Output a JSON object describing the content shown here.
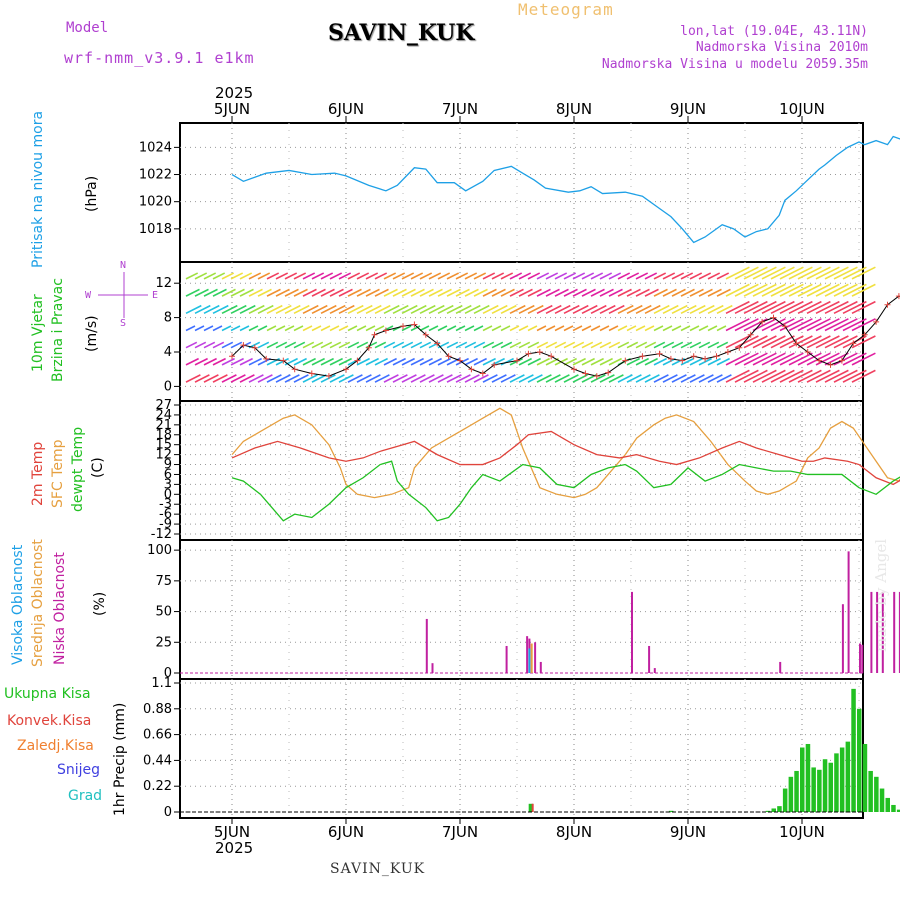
{
  "header": {
    "model_label": "Model",
    "model_name": "wrf-nmm_v3.9.1 e1km",
    "title": "Meteogram",
    "station": "SAVIN_KUK",
    "lonlat": "lon,lat (19.04E, 43.11N)",
    "elevation": "Nadmorska Visina 2010m",
    "model_elevation": "Nadmorska Visina u modelu 2059.35m"
  },
  "footer": {
    "station": "SAVIN_KUK"
  },
  "watermark": "made by Angel",
  "colors": {
    "pressure": "#1ea0e6",
    "t2m": "#e0443c",
    "sfc": "#e6a040",
    "dewpt": "#22c022",
    "high_cloud": "#1ea0e6",
    "mid_cloud": "#e6a040",
    "low_cloud": "#c020a0",
    "precip": "#22c022",
    "conv": "#e0443c",
    "frozen": "#f08030",
    "snow": "#4040e0",
    "hail": "#20c0c0"
  },
  "x_axis": {
    "top_year": "2025",
    "bottom_year": "2025",
    "days": [
      "5JUN",
      "6JUN",
      "7JUN",
      "8JUN",
      "9JUN",
      "10JUN"
    ]
  },
  "chart_data": [
    {
      "type": "line",
      "panel": "pressure",
      "ylabel_left": "Pritisak na nivou mora",
      "ylabel_unit": "(hPa)",
      "ylim": [
        1016,
        1025.5
      ],
      "yticks": [
        1018,
        1020,
        1022,
        1024
      ],
      "grid": true,
      "series": [
        {
          "x": [
            0,
            0.1,
            0.2,
            0.3,
            0.5,
            0.7,
            0.9,
            1.0,
            1.2,
            1.35,
            1.45,
            1.6,
            1.7,
            1.8,
            1.95,
            2.05,
            2.2,
            2.3,
            2.45,
            2.55,
            2.65,
            2.75,
            2.95,
            3.05,
            3.15,
            3.25,
            3.45,
            3.6,
            3.75,
            3.85,
            3.95,
            4.05,
            4.15,
            4.3,
            4.4,
            4.5,
            4.6,
            4.7,
            4.8,
            4.85,
            4.95,
            5.05,
            5.15,
            5.2,
            5.3,
            5.4,
            5.5,
            5.55,
            5.65,
            5.75,
            5.8,
            5.9,
            5.95,
            6.0,
            6.1
          ],
          "values": [
            1022.0,
            1021.5,
            1021.8,
            1022.1,
            1022.3,
            1022.0,
            1022.1,
            1021.9,
            1021.2,
            1020.8,
            1021.2,
            1022.5,
            1022.4,
            1021.4,
            1021.4,
            1020.8,
            1021.5,
            1022.3,
            1022.6,
            1022.1,
            1021.6,
            1021.0,
            1020.7,
            1020.8,
            1021.1,
            1020.6,
            1020.7,
            1020.4,
            1019.5,
            1018.9,
            1018.0,
            1017.0,
            1017.4,
            1018.3,
            1018.0,
            1017.4,
            1017.8,
            1018.0,
            1019.0,
            1020.1,
            1020.8,
            1021.6,
            1022.4,
            1022.7,
            1023.4,
            1024.0,
            1024.4,
            1024.2,
            1024.5,
            1024.2,
            1024.8,
            1024.5,
            1024.0,
            1022.6,
            1022.6
          ]
        }
      ]
    },
    {
      "type": "line",
      "panel": "wind",
      "ylabel_left": "10m Vjetar",
      "ylabel_left2": "Brzina i Pravac",
      "ylabel_unit": "(m/s)",
      "ylim": [
        -1,
        14
      ],
      "yticks": [
        0,
        4,
        8,
        12
      ],
      "compass": {
        "n": "N",
        "w": "W",
        "e": "E",
        "s": "S"
      },
      "series": [
        {
          "name": "speed",
          "x": [
            0,
            0.1,
            0.2,
            0.3,
            0.45,
            0.55,
            0.7,
            0.85,
            1.0,
            1.1,
            1.2,
            1.25,
            1.35,
            1.5,
            1.6,
            1.7,
            1.8,
            1.9,
            2.0,
            2.1,
            2.2,
            2.3,
            2.5,
            2.6,
            2.7,
            2.8,
            3.0,
            3.1,
            3.2,
            3.3,
            3.45,
            3.6,
            3.75,
            3.85,
            3.95,
            4.05,
            4.15,
            4.25,
            4.35,
            4.45,
            4.55,
            4.65,
            4.75,
            4.85,
            4.95,
            5.05,
            5.15,
            5.25,
            5.35,
            5.45,
            5.55,
            5.65,
            5.75,
            5.85,
            5.95,
            6.05
          ],
          "values": [
            3.5,
            4.8,
            4.5,
            3.2,
            3.0,
            2.0,
            1.5,
            1.2,
            2.0,
            3.0,
            4.5,
            6.0,
            6.5,
            7.0,
            7.2,
            6.0,
            5.0,
            3.5,
            3.0,
            2.0,
            1.5,
            2.5,
            3.0,
            3.8,
            4.0,
            3.5,
            2.0,
            1.5,
            1.2,
            1.6,
            3.0,
            3.5,
            3.8,
            3.2,
            3.0,
            3.5,
            3.2,
            3.5,
            4.0,
            4.5,
            6.0,
            7.5,
            8.0,
            7.0,
            5.0,
            4.0,
            3.0,
            2.5,
            3.0,
            5.0,
            6.0,
            7.5,
            9.5,
            10.5,
            10.0,
            7.5
          ]
        }
      ]
    },
    {
      "type": "line",
      "panel": "temperature",
      "ylabel_left": "2m Temp",
      "ylabel_left2": "SFC Temp",
      "ylabel_left3": "dewpt Temp",
      "ylabel_unit": "(C)",
      "ylim": [
        -12,
        27
      ],
      "yticks": [
        -12,
        -9,
        -6,
        -3,
        0,
        3,
        6,
        9,
        12,
        15,
        18,
        21,
        24,
        27
      ],
      "series": [
        {
          "name": "2m",
          "x": [
            0,
            0.2,
            0.4,
            0.6,
            0.85,
            1.0,
            1.15,
            1.3,
            1.5,
            1.6,
            1.8,
            2.0,
            2.2,
            2.35,
            2.5,
            2.6,
            2.8,
            3.0,
            3.2,
            3.4,
            3.55,
            3.75,
            3.9,
            4.1,
            4.3,
            4.45,
            4.6,
            4.8,
            5.0,
            5.1,
            5.2,
            5.4,
            5.5,
            5.65,
            5.8,
            5.9,
            6.0,
            6.1
          ],
          "values": [
            11,
            14,
            16,
            14,
            11,
            10,
            11,
            13,
            15,
            16,
            12,
            9,
            9,
            11,
            15,
            18,
            19,
            15,
            12,
            11,
            12,
            10,
            9,
            11,
            14,
            16,
            14,
            12,
            10,
            10,
            11,
            10,
            9,
            5,
            3,
            5,
            8,
            10
          ]
        },
        {
          "name": "sfc",
          "x": [
            0,
            0.1,
            0.25,
            0.35,
            0.45,
            0.55,
            0.7,
            0.85,
            0.95,
            1.0,
            1.1,
            1.25,
            1.4,
            1.55,
            1.6,
            1.75,
            1.9,
            2.05,
            2.2,
            2.35,
            2.45,
            2.55,
            2.7,
            2.85,
            3.0,
            3.1,
            3.2,
            3.3,
            3.45,
            3.55,
            3.7,
            3.8,
            3.9,
            4.05,
            4.2,
            4.35,
            4.5,
            4.6,
            4.7,
            4.8,
            4.95,
            5.05,
            5.15,
            5.25,
            5.35,
            5.45,
            5.55,
            5.65,
            5.75,
            5.85,
            5.95,
            6.05
          ],
          "values": [
            12,
            16,
            19,
            21,
            23,
            24,
            21,
            15,
            8,
            3,
            0,
            -1,
            0,
            2,
            8,
            14,
            17,
            20,
            23,
            26,
            24,
            14,
            2,
            0,
            -1,
            0,
            2,
            6,
            12,
            17,
            21,
            23,
            24,
            22,
            16,
            9,
            4,
            1,
            0,
            1,
            4,
            11,
            14,
            20,
            22,
            20,
            15,
            10,
            5,
            4,
            9,
            15
          ]
        },
        {
          "name": "dewpt",
          "x": [
            0,
            0.1,
            0.25,
            0.35,
            0.45,
            0.55,
            0.7,
            0.85,
            1.0,
            1.15,
            1.3,
            1.4,
            1.45,
            1.55,
            1.7,
            1.8,
            1.9,
            2.0,
            2.1,
            2.2,
            2.35,
            2.55,
            2.7,
            2.85,
            3.0,
            3.15,
            3.3,
            3.45,
            3.55,
            3.7,
            3.85,
            4.0,
            4.15,
            4.3,
            4.45,
            4.6,
            4.75,
            4.9,
            5.05,
            5.2,
            5.35,
            5.5,
            5.65,
            5.8,
            5.95,
            6.05
          ],
          "values": [
            5,
            4,
            0,
            -4,
            -8,
            -6,
            -7,
            -3,
            2,
            5,
            9,
            10,
            4,
            0,
            -4,
            -8,
            -7,
            -3,
            2,
            6,
            4,
            9,
            8,
            3,
            2,
            6,
            8,
            9,
            7,
            2,
            3,
            8,
            4,
            6,
            9,
            8,
            7,
            7,
            6,
            6,
            6,
            2,
            0,
            4,
            7,
            6
          ]
        }
      ]
    },
    {
      "type": "bar",
      "panel": "cloud",
      "ylabel_left": "Visoka Oblacnost",
      "ylabel_left2": "Srednja Oblacnost",
      "ylabel_left3": "Niska Oblacnost",
      "ylabel_unit": "(%)",
      "ylim": [
        0,
        105
      ],
      "yticks": [
        0,
        25,
        50,
        75,
        100
      ],
      "series": [
        {
          "name": "low",
          "x": [
            1.7,
            1.75,
            2.4,
            2.58,
            2.6,
            2.65,
            2.7,
            3.5,
            3.65,
            3.7,
            4.8,
            5.35,
            5.4,
            5.5,
            5.52,
            5.6,
            5.65,
            5.7,
            5.8,
            5.85,
            5.9,
            6.05
          ],
          "values": [
            44,
            8,
            22,
            30,
            28,
            25,
            9,
            66,
            22,
            4,
            9,
            56,
            99,
            24,
            23,
            66,
            66,
            66,
            66,
            66,
            66,
            44
          ]
        }
      ]
    },
    {
      "type": "bar",
      "panel": "precipitation",
      "ylabel_left": "1hr Precip (mm)",
      "legend": [
        "Ukupna Kisa",
        "Konvek.Kisa",
        "Zaledj.Kisa",
        "Snijeg",
        "Grad"
      ],
      "ylim": [
        0,
        1.1
      ],
      "yticks": [
        0,
        0.22,
        0.44,
        0.66,
        0.88,
        1.1
      ],
      "series": [
        {
          "name": "total",
          "x": [
            2.62,
            3.85,
            4.7,
            4.75,
            4.8,
            4.85,
            4.9,
            4.95,
            5.0,
            5.05,
            5.1,
            5.15,
            5.2,
            5.25,
            5.3,
            5.35,
            5.4,
            5.45,
            5.5,
            5.55,
            5.6,
            5.65,
            5.7,
            5.75,
            5.8,
            5.85,
            5.9,
            6.0,
            6.05
          ],
          "values": [
            0.07,
            0.01,
            0.01,
            0.03,
            0.05,
            0.2,
            0.3,
            0.35,
            0.55,
            0.58,
            0.38,
            0.36,
            0.45,
            0.42,
            0.5,
            0.55,
            0.6,
            1.05,
            0.88,
            0.58,
            0.35,
            0.3,
            0.2,
            0.12,
            0.06,
            0.02,
            0.01,
            0.06,
            0.04
          ]
        }
      ]
    }
  ]
}
